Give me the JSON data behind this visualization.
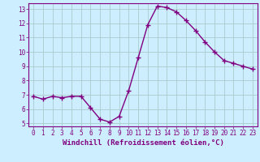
{
  "x": [
    0,
    1,
    2,
    3,
    4,
    5,
    6,
    7,
    8,
    9,
    10,
    11,
    12,
    13,
    14,
    15,
    16,
    17,
    18,
    19,
    20,
    21,
    22,
    23
  ],
  "y": [
    6.9,
    6.7,
    6.9,
    6.8,
    6.9,
    6.9,
    6.1,
    5.3,
    5.1,
    5.5,
    7.3,
    9.6,
    11.9,
    13.2,
    13.1,
    12.8,
    12.2,
    11.5,
    10.7,
    10.0,
    9.4,
    9.2,
    9.0,
    8.8
  ],
  "line_color": "#800080",
  "marker": "+",
  "marker_size": 4,
  "background_color": "#cceeff",
  "grid_color": "#aacccc",
  "xlabel": "Windchill (Refroidissement éolien,°C)",
  "xlabel_color": "#800080",
  "ylim_min": 4.8,
  "ylim_max": 13.4,
  "xlim_min": -0.5,
  "xlim_max": 23.5,
  "yticks": [
    5,
    6,
    7,
    8,
    9,
    10,
    11,
    12,
    13
  ],
  "xticks": [
    0,
    1,
    2,
    3,
    4,
    5,
    6,
    7,
    8,
    9,
    10,
    11,
    12,
    13,
    14,
    15,
    16,
    17,
    18,
    19,
    20,
    21,
    22,
    23
  ],
  "tick_color": "#800080",
  "tick_fontsize": 5.5,
  "xlabel_fontsize": 6.5,
  "line_width": 1.0,
  "spine_color": "#800080"
}
